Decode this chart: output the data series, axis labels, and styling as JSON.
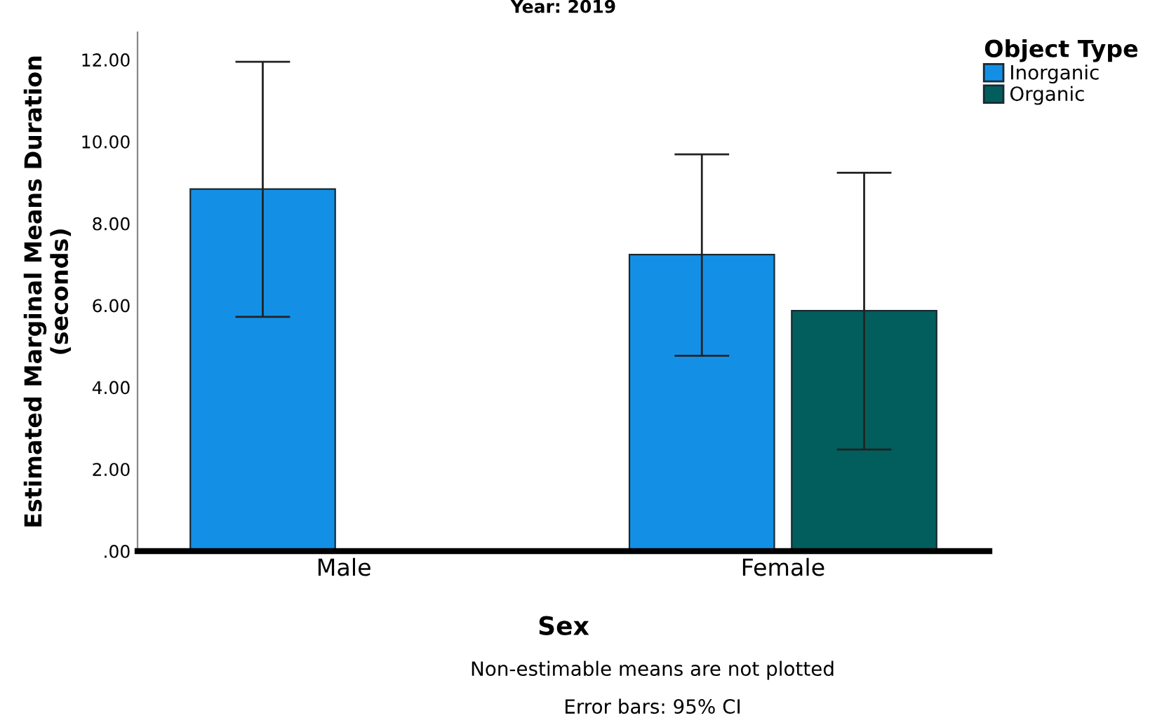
{
  "chart_data": {
    "type": "bar",
    "title": "Year: 2019",
    "xlabel": "Sex",
    "ylabel": "Estimated Marginal Means Duration\n(seconds)",
    "legend_title": "Object Type",
    "categories": [
      "Male",
      "Female"
    ],
    "series": [
      {
        "name": "Inorganic",
        "color": "#1390e6",
        "values": [
          8.84,
          7.24
        ],
        "errors": [
          [
            5.72,
            11.95
          ],
          [
            4.77,
            9.69
          ]
        ]
      },
      {
        "name": "Organic",
        "color": "#025e5c",
        "values": [
          null,
          5.87
        ],
        "errors": [
          null,
          [
            2.48,
            9.24
          ]
        ]
      }
    ],
    "ylim": [
      0,
      12.67
    ],
    "yticks": [
      {
        "value": 0,
        "label": ".00"
      },
      {
        "value": 2,
        "label": "2.00"
      },
      {
        "value": 4,
        "label": "4.00"
      },
      {
        "value": 6,
        "label": "6.00"
      },
      {
        "value": 8,
        "label": "8.00"
      },
      {
        "value": 10,
        "label": "10.00"
      },
      {
        "value": 12,
        "label": "12.00"
      }
    ],
    "grid": false,
    "legend": "top right",
    "annotations": [
      "Non-estimable means are not plotted",
      "Error bars: 95% CI"
    ]
  }
}
